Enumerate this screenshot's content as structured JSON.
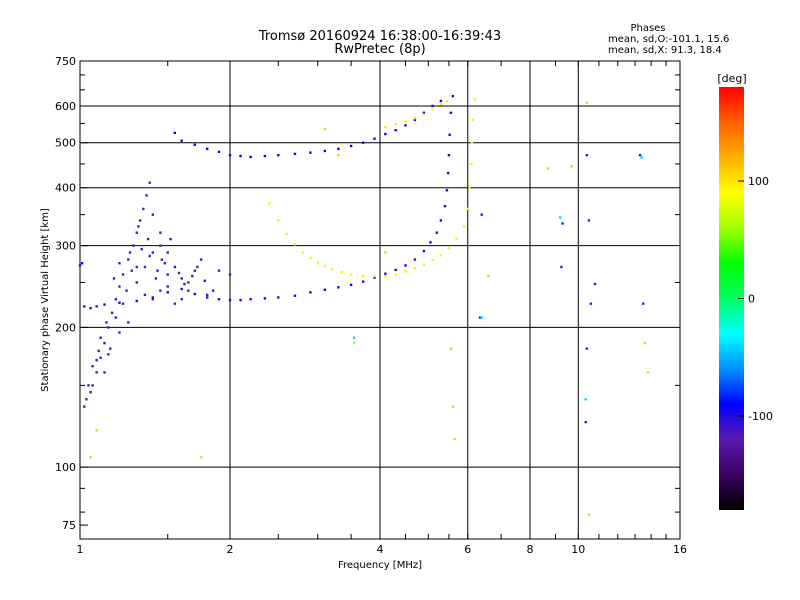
{
  "chart_data": {
    "type": "scatter",
    "title": "Tromsø 20160924 16:38:00-16:39:43",
    "subtitle": "RwPretec (8p)",
    "xlabel": "Frequency [MHz]",
    "ylabel": "Stationary phase Virtual Height [km]",
    "x_scale": "log",
    "y_scale": "log",
    "xlim": [
      1,
      16
    ],
    "ylim": [
      70,
      750
    ],
    "x_ticks": [
      {
        "value": 1,
        "label": "1"
      },
      {
        "value": 2,
        "label": "2"
      },
      {
        "value": 4,
        "label": "4"
      },
      {
        "value": 6,
        "label": "6"
      },
      {
        "value": 8,
        "label": "8"
      },
      {
        "value": 10,
        "label": "10"
      },
      {
        "value": 16,
        "label": "16"
      }
    ],
    "x_gridlines": [
      2,
      4,
      6,
      8,
      10
    ],
    "y_ticks": [
      {
        "value": 75,
        "label": "75"
      },
      {
        "value": 100,
        "label": "100"
      },
      {
        "value": 200,
        "label": "200"
      },
      {
        "value": 300,
        "label": "300"
      },
      {
        "value": 400,
        "label": "400"
      },
      {
        "value": 500,
        "label": "500"
      },
      {
        "value": 600,
        "label": "600"
      },
      {
        "value": 750,
        "label": "750"
      }
    ],
    "y_gridlines": [
      100,
      200,
      300,
      400,
      500,
      600
    ],
    "grid": true,
    "phase_legend": {
      "heading": "Phases",
      "lines": [
        "mean, sd,O:-101.1, 15.6",
        "mean, sd,X:  91.3, 18.4"
      ]
    },
    "colorbar": {
      "label": "[deg]",
      "range": [
        -180,
        180
      ],
      "ticks": [
        {
          "value": 100,
          "label": "100"
        },
        {
          "value": 0,
          "label": "0"
        },
        {
          "value": -100,
          "label": "-100"
        }
      ],
      "colors": [
        "#000000",
        "#3a0060",
        "#5a1ab0",
        "#0000ff",
        "#0090ff",
        "#00ffff",
        "#00ff60",
        "#00ff00",
        "#a0ff00",
        "#ffff00",
        "#ffb000",
        "#ff6000",
        "#ff0000"
      ]
    },
    "series": [
      {
        "role": "O-mode E/F1 trace",
        "phase_deg": -100,
        "points": [
          [
            1.0,
            272
          ],
          [
            1.01,
            275
          ],
          [
            1.02,
            222
          ],
          [
            1.05,
            220
          ],
          [
            1.08,
            222
          ],
          [
            1.12,
            224
          ],
          [
            1.2,
            226
          ],
          [
            1.3,
            228
          ],
          [
            1.4,
            232
          ],
          [
            1.5,
            238
          ],
          [
            1.6,
            242
          ],
          [
            1.7,
            236
          ],
          [
            1.8,
            232
          ],
          [
            1.9,
            230
          ],
          [
            2.0,
            229
          ],
          [
            2.1,
            229
          ],
          [
            2.2,
            230
          ],
          [
            2.35,
            231
          ],
          [
            2.5,
            232
          ],
          [
            2.7,
            234
          ],
          [
            2.9,
            238
          ],
          [
            3.1,
            241
          ],
          [
            3.3,
            244
          ],
          [
            3.5,
            247
          ],
          [
            3.7,
            251
          ],
          [
            3.9,
            256
          ],
          [
            4.1,
            261
          ],
          [
            4.3,
            266
          ],
          [
            4.5,
            272
          ],
          [
            4.7,
            280
          ],
          [
            4.9,
            292
          ],
          [
            5.05,
            305
          ],
          [
            5.2,
            320
          ],
          [
            5.3,
            340
          ],
          [
            5.4,
            365
          ],
          [
            5.45,
            395
          ],
          [
            5.48,
            430
          ],
          [
            5.5,
            470
          ],
          [
            5.52,
            520
          ],
          [
            5.55,
            580
          ],
          [
            5.6,
            630
          ]
        ]
      },
      {
        "role": "Low-frequency cloud",
        "phase_deg": -115,
        "points": [
          [
            1.02,
            135
          ],
          [
            1.03,
            140
          ],
          [
            1.05,
            145
          ],
          [
            1.06,
            150
          ],
          [
            1.08,
            160
          ],
          [
            1.1,
            172
          ],
          [
            1.12,
            185
          ],
          [
            1.14,
            200
          ],
          [
            1.16,
            215
          ],
          [
            1.18,
            230
          ],
          [
            1.2,
            245
          ],
          [
            1.22,
            260
          ],
          [
            1.25,
            280
          ],
          [
            1.28,
            300
          ],
          [
            1.3,
            320
          ],
          [
            1.32,
            340
          ],
          [
            1.34,
            360
          ],
          [
            1.36,
            385
          ],
          [
            1.38,
            410
          ],
          [
            1.3,
            250
          ],
          [
            1.35,
            270
          ],
          [
            1.4,
            290
          ],
          [
            1.45,
            300
          ],
          [
            1.5,
            290
          ],
          [
            1.55,
            270
          ],
          [
            1.6,
            255
          ],
          [
            1.65,
            250
          ],
          [
            1.7,
            265
          ],
          [
            1.75,
            280
          ],
          [
            1.4,
            230
          ],
          [
            1.45,
            240
          ],
          [
            1.5,
            260
          ],
          [
            1.25,
            205
          ],
          [
            1.2,
            195
          ],
          [
            1.15,
            180
          ],
          [
            1.35,
            235
          ],
          [
            1.42,
            255
          ],
          [
            1.48,
            275
          ],
          [
            1.52,
            310
          ],
          [
            1.4,
            350
          ],
          [
            1.45,
            320
          ],
          [
            1.33,
            295
          ],
          [
            1.27,
            265
          ],
          [
            1.22,
            225
          ],
          [
            1.1,
            190
          ],
          [
            1.08,
            170
          ],
          [
            1.04,
            150
          ],
          [
            1.6,
            230
          ],
          [
            1.55,
            225
          ],
          [
            1.65,
            240
          ],
          [
            1.9,
            265
          ],
          [
            2.0,
            260
          ],
          [
            1.85,
            240
          ],
          [
            1.12,
            160
          ],
          [
            1.14,
            175
          ],
          [
            1.18,
            210
          ],
          [
            1.24,
            240
          ],
          [
            1.3,
            270
          ],
          [
            1.38,
            285
          ],
          [
            1.46,
            280
          ],
          [
            1.5,
            245
          ],
          [
            1.43,
            265
          ],
          [
            1.37,
            310
          ],
          [
            1.31,
            330
          ],
          [
            1.26,
            290
          ],
          [
            1.2,
            275
          ],
          [
            1.17,
            255
          ],
          [
            1.13,
            205
          ],
          [
            1.09,
            178
          ],
          [
            1.06,
            165
          ],
          [
            1.58,
            262
          ],
          [
            1.62,
            248
          ],
          [
            1.68,
            258
          ],
          [
            1.72,
            270
          ],
          [
            1.78,
            252
          ],
          [
            1.8,
            235
          ]
        ]
      },
      {
        "role": "O-mode F2 upper trace",
        "phase_deg": -95,
        "points": [
          [
            1.55,
            525
          ],
          [
            1.6,
            505
          ],
          [
            1.7,
            495
          ],
          [
            1.8,
            485
          ],
          [
            1.9,
            478
          ],
          [
            2.0,
            470
          ],
          [
            2.1,
            468
          ],
          [
            2.2,
            466
          ],
          [
            2.35,
            468
          ],
          [
            2.5,
            470
          ],
          [
            2.7,
            473
          ],
          [
            2.9,
            476
          ],
          [
            3.1,
            480
          ],
          [
            3.3,
            485
          ],
          [
            3.5,
            492
          ],
          [
            3.7,
            500
          ],
          [
            3.9,
            510
          ],
          [
            4.1,
            522
          ],
          [
            4.3,
            532
          ],
          [
            4.5,
            545
          ],
          [
            4.7,
            560
          ],
          [
            4.9,
            580
          ],
          [
            5.1,
            600
          ],
          [
            5.3,
            615
          ]
        ]
      },
      {
        "role": "X-mode trace",
        "phase_deg": 95,
        "points": [
          [
            2.4,
            370
          ],
          [
            2.5,
            340
          ],
          [
            2.6,
            318
          ],
          [
            2.7,
            302
          ],
          [
            2.8,
            290
          ],
          [
            2.9,
            282
          ],
          [
            3.0,
            276
          ],
          [
            3.1,
            271
          ],
          [
            3.2,
            267
          ],
          [
            3.35,
            263
          ],
          [
            3.5,
            260
          ],
          [
            3.7,
            258
          ],
          [
            3.9,
            258
          ],
          [
            4.1,
            258
          ],
          [
            4.3,
            260
          ],
          [
            4.5,
            264
          ],
          [
            4.7,
            268
          ],
          [
            4.9,
            273
          ],
          [
            5.1,
            279
          ],
          [
            5.3,
            286
          ],
          [
            5.5,
            296
          ],
          [
            5.7,
            310
          ],
          [
            5.9,
            330
          ],
          [
            6.0,
            360
          ],
          [
            6.05,
            400
          ],
          [
            6.1,
            450
          ],
          [
            6.12,
            500
          ],
          [
            6.15,
            560
          ],
          [
            6.2,
            620
          ]
        ]
      },
      {
        "role": "X-mode upper branch",
        "phase_deg": 100,
        "points": [
          [
            4.1,
            540
          ],
          [
            4.3,
            548
          ],
          [
            4.5,
            555
          ],
          [
            4.7,
            565
          ],
          [
            4.9,
            575
          ],
          [
            5.1,
            590
          ],
          [
            5.3,
            605
          ],
          [
            5.45,
            615
          ]
        ]
      },
      {
        "role": "Scattered points",
        "phase_deg": 60,
        "points": [
          [
            1.05,
            105
          ],
          [
            1.08,
            120
          ],
          [
            1.75,
            105
          ],
          [
            3.1,
            535
          ],
          [
            3.3,
            470
          ],
          [
            3.55,
            185
          ],
          [
            4.1,
            290
          ],
          [
            5.55,
            180
          ],
          [
            5.6,
            135
          ],
          [
            5.65,
            115
          ],
          [
            6.6,
            258
          ],
          [
            8.7,
            440
          ],
          [
            9.7,
            445
          ],
          [
            10.4,
            610
          ],
          [
            10.5,
            79
          ],
          [
            13.8,
            160
          ],
          [
            13.6,
            185
          ]
        ]
      },
      {
        "role": "Scattered points (blue)",
        "phase_deg": -80,
        "points": [
          [
            6.4,
            350
          ],
          [
            6.35,
            210
          ],
          [
            9.3,
            335
          ],
          [
            9.25,
            270
          ],
          [
            10.4,
            470
          ],
          [
            10.5,
            340
          ],
          [
            10.6,
            225
          ],
          [
            10.8,
            248
          ],
          [
            10.4,
            180
          ],
          [
            10.35,
            125
          ],
          [
            13.3,
            470
          ],
          [
            13.5,
            225
          ]
        ]
      },
      {
        "role": "Scattered points (cyan)",
        "phase_deg": -40,
        "points": [
          [
            3.55,
            190
          ],
          [
            6.4,
            210
          ],
          [
            9.2,
            345
          ],
          [
            10.35,
            140
          ],
          [
            13.4,
            465
          ]
        ]
      }
    ]
  }
}
